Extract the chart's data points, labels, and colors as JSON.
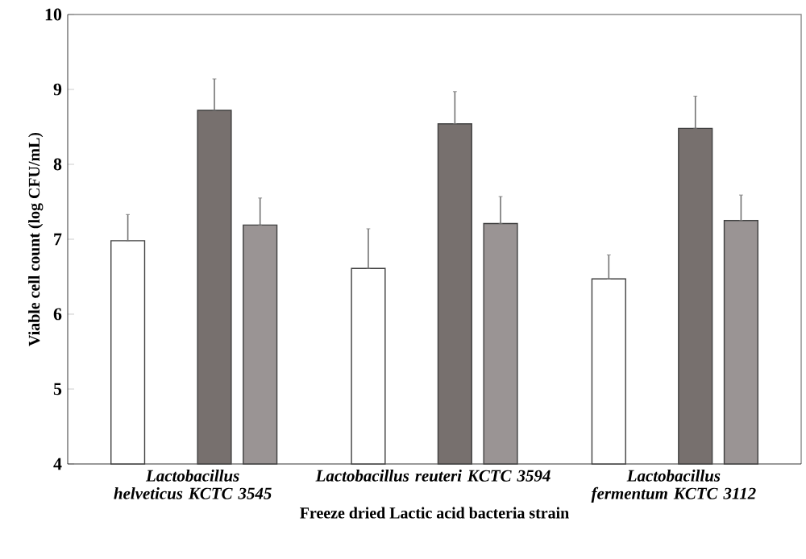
{
  "chart_data": {
    "type": "bar",
    "xlabel": "Freeze dried Lactic acid bacteria strain",
    "ylabel": "Viable cell count (log CFU/mL)",
    "categories": [
      "Lactobacillus helveticus KCTC 3545",
      "Lactobacillus reuteri KCTC 3594",
      "Lactobacillus fermentum KCTC 3112"
    ],
    "series": [
      {
        "color": "#ffffff",
        "values": [
          6.98,
          6.61,
          6.47
        ],
        "errors": [
          [
            6.98,
            7.33
          ],
          [
            6.61,
            7.14
          ],
          [
            6.47,
            6.79
          ]
        ]
      },
      {
        "color": "#77706e",
        "values": [
          8.72,
          8.54,
          8.48
        ],
        "errors": [
          [
            8.72,
            9.14
          ],
          [
            8.54,
            8.97
          ],
          [
            8.48,
            8.91
          ]
        ]
      },
      {
        "color": "#9a9494",
        "values": [
          7.19,
          7.21,
          7.25
        ],
        "errors": [
          [
            7.19,
            7.55
          ],
          [
            7.21,
            7.57
          ],
          [
            7.25,
            7.59
          ]
        ]
      }
    ],
    "ylim": [
      4,
      10
    ],
    "yticks": [
      4,
      5,
      6,
      7,
      8,
      9,
      10
    ],
    "grid": false
  }
}
